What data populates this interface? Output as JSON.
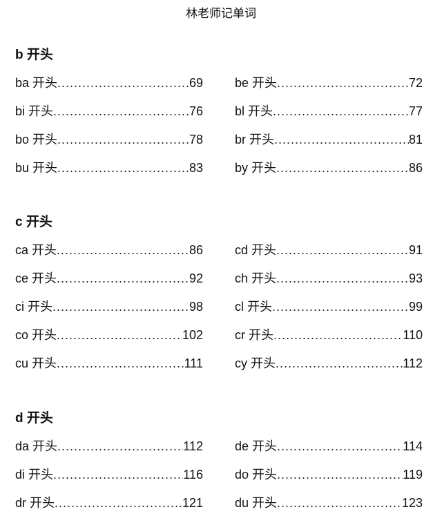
{
  "title": "林老师记单词",
  "sections": [
    {
      "heading": "b 开头",
      "rows": [
        [
          {
            "label": "ba 开头",
            "page": "69"
          },
          {
            "label": "be 开头",
            "page": "72"
          }
        ],
        [
          {
            "label": "bi 开头",
            "page": "76"
          },
          {
            "label": "bl 开头",
            "page": "77"
          }
        ],
        [
          {
            "label": "bo 开头",
            "page": "78"
          },
          {
            "label": "br 开头",
            "page": "81"
          }
        ],
        [
          {
            "label": "bu 开头",
            "page": "83"
          },
          {
            "label": "by 开头",
            "page": "86"
          }
        ]
      ]
    },
    {
      "heading": "c 开头",
      "rows": [
        [
          {
            "label": "ca 开头",
            "page": "86"
          },
          {
            "label": "cd 开头",
            "page": "91"
          }
        ],
        [
          {
            "label": "ce 开头",
            "page": "92"
          },
          {
            "label": "ch 开头",
            "page": "93"
          }
        ],
        [
          {
            "label": "ci 开头",
            "page": "98"
          },
          {
            "label": "cl 开头",
            "page": "99"
          }
        ],
        [
          {
            "label": "co 开头",
            "page": "102"
          },
          {
            "label": "cr 开头",
            "page": "110"
          }
        ],
        [
          {
            "label": "cu 开头",
            "page": "111"
          },
          {
            "label": "cy 开头",
            "page": "112"
          }
        ]
      ]
    },
    {
      "heading": "d 开头",
      "rows": [
        [
          {
            "label": "da 开头",
            "page": "112"
          },
          {
            "label": "de 开头",
            "page": "114"
          }
        ],
        [
          {
            "label": "di 开头",
            "page": "116"
          },
          {
            "label": "do 开头",
            "page": "119"
          }
        ],
        [
          {
            "label": "dr 开头",
            "page": "121"
          },
          {
            "label": "du 开头",
            "page": "123"
          }
        ]
      ]
    }
  ]
}
